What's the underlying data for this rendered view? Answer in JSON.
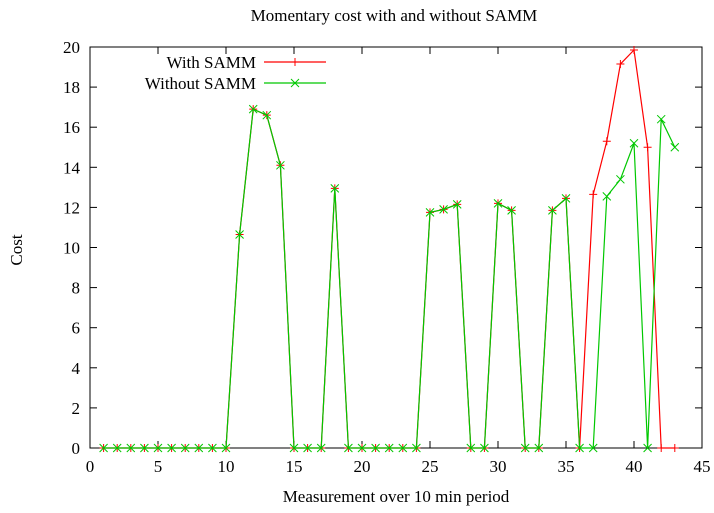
{
  "chart_data": {
    "type": "line",
    "title": "Momentary cost with and without SAMM",
    "xlabel": "Measurement over 10 min period",
    "ylabel": "Cost",
    "xlim": [
      0,
      45
    ],
    "ylim": [
      0,
      20
    ],
    "xticks": [
      0,
      5,
      10,
      15,
      20,
      25,
      30,
      35,
      40,
      45
    ],
    "yticks": [
      0,
      2,
      4,
      6,
      8,
      10,
      12,
      14,
      16,
      18,
      20
    ],
    "grid": false,
    "legend_position": "top-left",
    "series": [
      {
        "name": "With SAMM",
        "color": "#ff0000",
        "marker": "plus",
        "points": [
          [
            1,
            0
          ],
          [
            2,
            0
          ],
          [
            3,
            0
          ],
          [
            4,
            0
          ],
          [
            5,
            0
          ],
          [
            6,
            0
          ],
          [
            7,
            0
          ],
          [
            8,
            0
          ],
          [
            9,
            0
          ],
          [
            10,
            0
          ],
          [
            11,
            10.65
          ],
          [
            12,
            16.9
          ],
          [
            13,
            16.6
          ],
          [
            14,
            14.1
          ],
          [
            15,
            0
          ],
          [
            16,
            0
          ],
          [
            17,
            0
          ],
          [
            18,
            12.95
          ],
          [
            19,
            0
          ],
          [
            20,
            0
          ],
          [
            21,
            0
          ],
          [
            22,
            0
          ],
          [
            23,
            0
          ],
          [
            24,
            0
          ],
          [
            25,
            11.75
          ],
          [
            26,
            11.9
          ],
          [
            27,
            12.15
          ],
          [
            28,
            0
          ],
          [
            29,
            0
          ],
          [
            30,
            12.2
          ],
          [
            31,
            11.85
          ],
          [
            32,
            0
          ],
          [
            33,
            0
          ],
          [
            34,
            11.85
          ],
          [
            35,
            12.45
          ],
          [
            36,
            0
          ],
          [
            37,
            12.65
          ],
          [
            38,
            15.3
          ],
          [
            39,
            19.15
          ],
          [
            40,
            19.85
          ],
          [
            41,
            15.0
          ],
          [
            42,
            0
          ],
          [
            43,
            0
          ]
        ]
      },
      {
        "name": "Without SAMM",
        "color": "#00c800",
        "marker": "cross",
        "points": [
          [
            1,
            0
          ],
          [
            2,
            0
          ],
          [
            3,
            0
          ],
          [
            4,
            0
          ],
          [
            5,
            0
          ],
          [
            6,
            0
          ],
          [
            7,
            0
          ],
          [
            8,
            0
          ],
          [
            9,
            0
          ],
          [
            10,
            0
          ],
          [
            11,
            10.65
          ],
          [
            12,
            16.9
          ],
          [
            13,
            16.6
          ],
          [
            14,
            14.1
          ],
          [
            15,
            0
          ],
          [
            16,
            0
          ],
          [
            17,
            0
          ],
          [
            18,
            12.95
          ],
          [
            19,
            0
          ],
          [
            20,
            0
          ],
          [
            21,
            0
          ],
          [
            22,
            0
          ],
          [
            23,
            0
          ],
          [
            24,
            0
          ],
          [
            25,
            11.75
          ],
          [
            26,
            11.9
          ],
          [
            27,
            12.15
          ],
          [
            28,
            0
          ],
          [
            29,
            0
          ],
          [
            30,
            12.2
          ],
          [
            31,
            11.85
          ],
          [
            32,
            0
          ],
          [
            33,
            0
          ],
          [
            34,
            11.85
          ],
          [
            35,
            12.45
          ],
          [
            36,
            0
          ],
          [
            37,
            0
          ],
          [
            38,
            12.55
          ],
          [
            39,
            13.4
          ],
          [
            40,
            15.2
          ],
          [
            41,
            0
          ],
          [
            42,
            16.4
          ],
          [
            43,
            15.0
          ]
        ]
      }
    ]
  }
}
